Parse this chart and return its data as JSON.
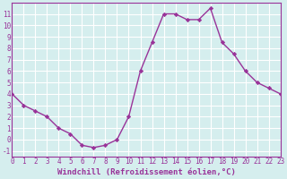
{
  "x": [
    0,
    1,
    2,
    3,
    4,
    5,
    6,
    7,
    8,
    9,
    10,
    11,
    12,
    13,
    14,
    15,
    16,
    17,
    18,
    19,
    20,
    21,
    22,
    23
  ],
  "y": [
    4.0,
    3.0,
    2.5,
    2.0,
    1.0,
    0.5,
    -0.5,
    -0.7,
    -0.5,
    0.0,
    2.0,
    6.0,
    8.5,
    11.0,
    11.0,
    10.5,
    10.5,
    11.5,
    8.5,
    7.5,
    6.0,
    5.0,
    4.5,
    4.0
  ],
  "xlim": [
    0,
    23
  ],
  "ylim": [
    -1.5,
    12.0
  ],
  "yticks": [
    -1,
    0,
    1,
    2,
    3,
    4,
    5,
    6,
    7,
    8,
    9,
    10,
    11
  ],
  "xticks": [
    0,
    1,
    2,
    3,
    4,
    5,
    6,
    7,
    8,
    9,
    10,
    11,
    12,
    13,
    14,
    15,
    16,
    17,
    18,
    19,
    20,
    21,
    22,
    23
  ],
  "xlabel": "Windchill (Refroidissement éolien,°C)",
  "line_color": "#993399",
  "marker": "D",
  "marker_size": 2.2,
  "bg_color": "#d5eeee",
  "grid_color": "#ffffff",
  "tick_label_fontsize": 5.5,
  "xlabel_fontsize": 6.5,
  "line_width": 1.0
}
